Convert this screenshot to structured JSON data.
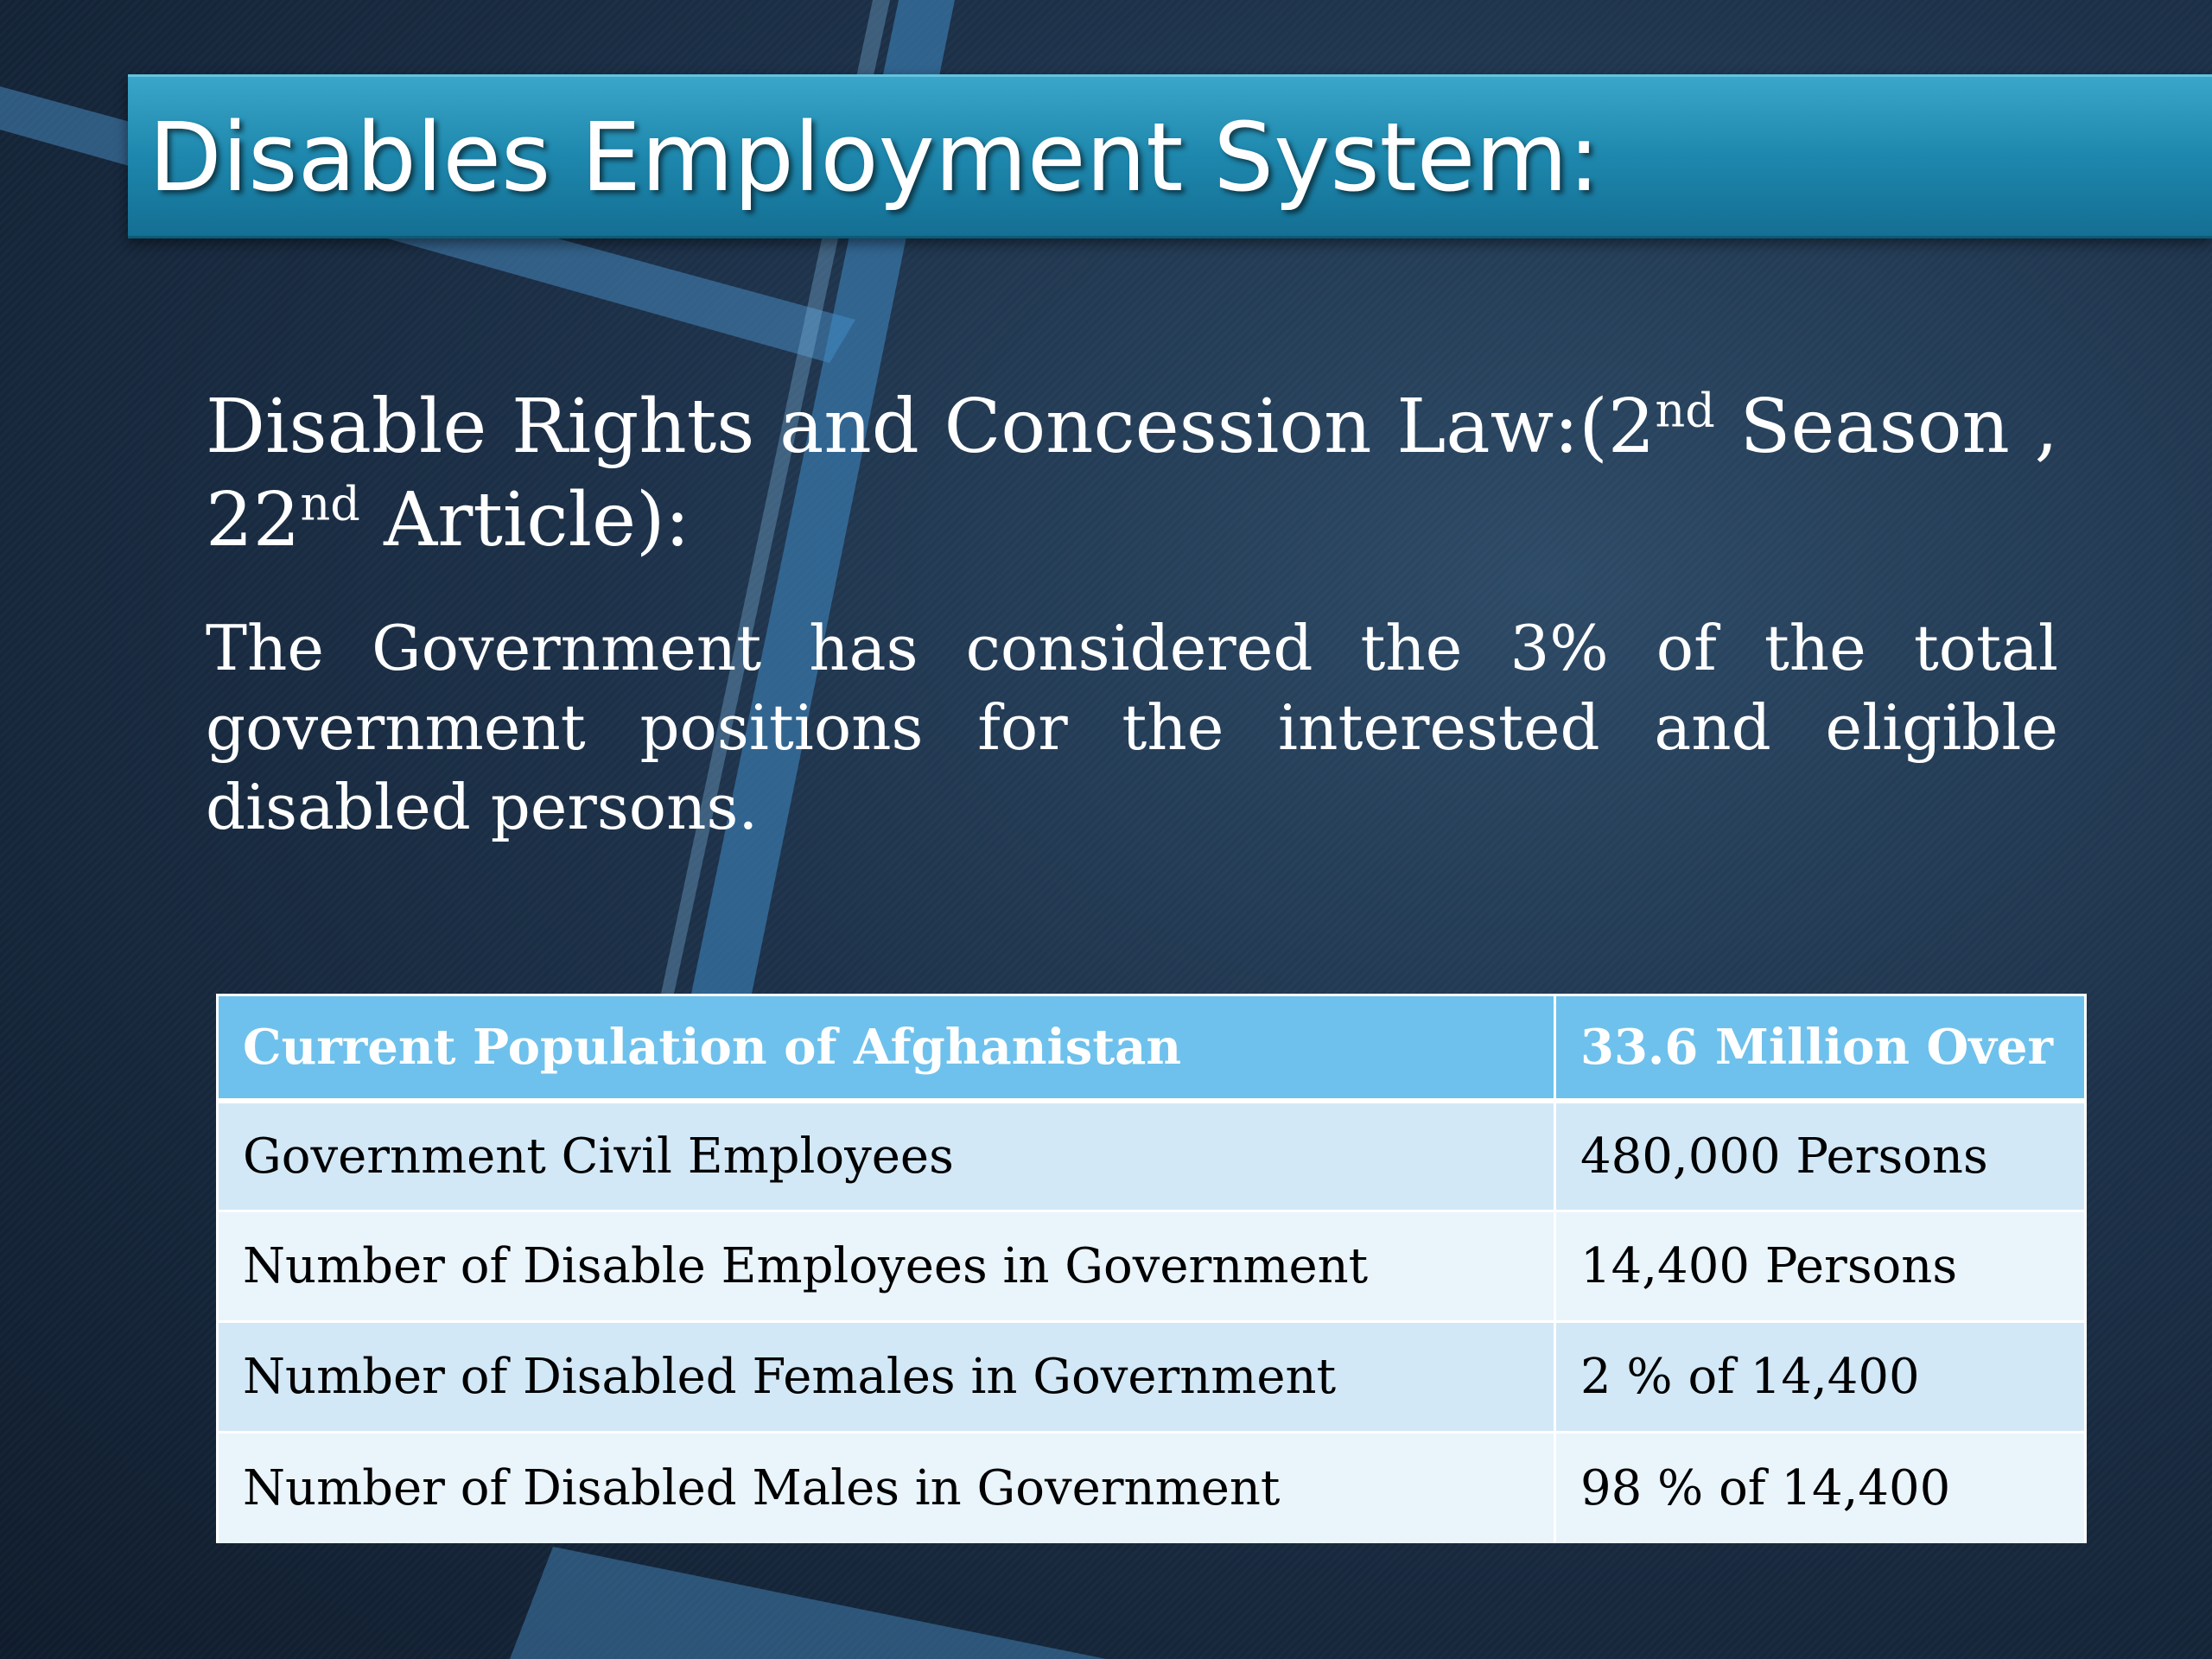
{
  "slide": {
    "title": "Disables Employment System:",
    "law_heading": {
      "part1": "Disable   Rights and Concession Law:(2",
      "sup1": "nd",
      "part2": " Season , 22",
      "sup2": "nd",
      "part3": " Article):"
    },
    "law_body": "The Government has considered the 3% of the total government positions for the interested and eligible disabled persons."
  },
  "table": {
    "header": {
      "label": "Current  Population of Afghanistan",
      "value": "33.6 Million Over"
    },
    "rows": [
      {
        "label": "Government Civil Employees",
        "value": "480,000 Persons"
      },
      {
        "label": "Number of Disable Employees in Government",
        "value": "14,400 Persons"
      },
      {
        "label": "Number of Disabled Females in Government",
        "value": "2 % of 14,400"
      },
      {
        "label": "Number of Disabled Males in Government",
        "value": "98 % of 14,400"
      }
    ]
  },
  "colors": {
    "title_bar": "#1e87ad",
    "table_header": "#6ec1ec",
    "table_row_odd": "#d2e8f7",
    "table_row_even": "#eaf4fb"
  }
}
